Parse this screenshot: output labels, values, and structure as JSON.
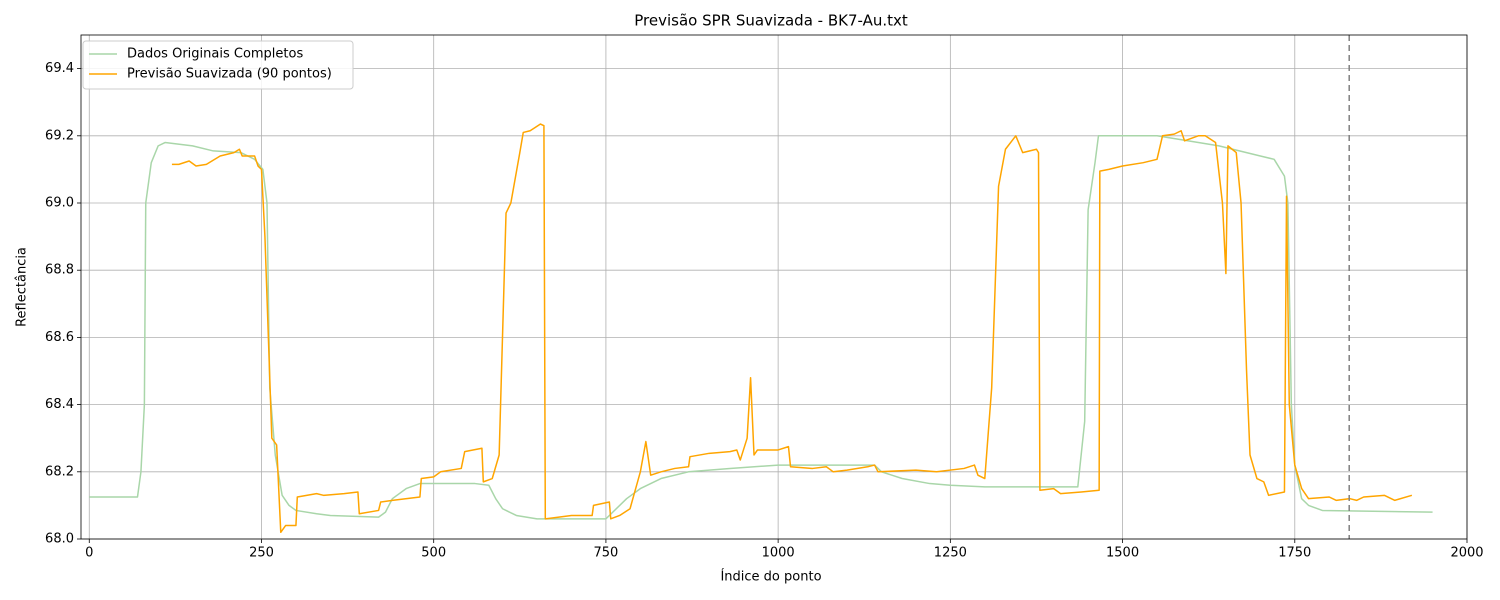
{
  "chart_data": {
    "type": "line",
    "title": "Previsão SPR Suavizada - BK7-Au.txt",
    "xlabel": "Índice do ponto",
    "ylabel": "Reflectância",
    "xlim": [
      -12,
      2000
    ],
    "ylim": [
      68.0,
      69.5
    ],
    "xticks": [
      0,
      250,
      500,
      750,
      1000,
      1250,
      1500,
      1750,
      2000
    ],
    "yticks": [
      {
        "value": 68.0,
        "label": "68.0"
      },
      68.2,
      68.4,
      68.6,
      68.8,
      {
        "value": 69.0,
        "label": "69.0"
      },
      69.2,
      69.4
    ],
    "grid": true,
    "legend": "upper left",
    "vline": {
      "x": 1829,
      "color": "#808080",
      "style": "dashed"
    },
    "series": [
      {
        "name": "Dados Originais Completos",
        "color": "#a9d6a9",
        "x": [
          0,
          70,
          75,
          80,
          82,
          90,
          100,
          110,
          150,
          180,
          220,
          240,
          252,
          258,
          262,
          270,
          280,
          290,
          300,
          330,
          350,
          420,
          430,
          440,
          460,
          480,
          560,
          580,
          590,
          600,
          620,
          650,
          750,
          760,
          780,
          800,
          830,
          870,
          930,
          1000,
          1140,
          1150,
          1180,
          1220,
          1250,
          1300,
          1435,
          1445,
          1450,
          1460,
          1465,
          1550,
          1580,
          1640,
          1680,
          1700,
          1720,
          1735,
          1740,
          1745,
          1750,
          1760,
          1770,
          1790,
          1950
        ],
        "values": [
          68.125,
          68.125,
          68.2,
          68.4,
          69.0,
          69.12,
          69.17,
          69.18,
          69.17,
          69.155,
          69.15,
          69.13,
          69.1,
          69.0,
          68.45,
          68.25,
          68.13,
          68.1,
          68.085,
          68.075,
          68.07,
          68.065,
          68.08,
          68.12,
          68.15,
          68.165,
          68.165,
          68.16,
          68.12,
          68.09,
          68.07,
          68.06,
          68.06,
          68.08,
          68.12,
          68.15,
          68.18,
          68.2,
          68.21,
          68.22,
          68.22,
          68.2,
          68.18,
          68.165,
          68.16,
          68.155,
          68.155,
          68.35,
          68.98,
          69.12,
          69.2,
          69.2,
          69.19,
          69.17,
          69.15,
          69.14,
          69.13,
          69.08,
          69.0,
          68.4,
          68.22,
          68.12,
          68.1,
          68.085,
          68.08
        ]
      },
      {
        "name": "Previsão Suavizada (90 pontos)",
        "color": "#ffa500",
        "x": [
          120,
          130,
          145,
          155,
          170,
          190,
          210,
          218,
          222,
          240,
          245,
          250,
          255,
          260,
          265,
          272,
          275,
          278,
          285,
          300,
          302,
          330,
          340,
          370,
          390,
          392,
          420,
          423,
          440,
          480,
          482,
          500,
          510,
          540,
          545,
          570,
          572,
          585,
          595,
          605,
          612,
          625,
          630,
          640,
          655,
          660,
          662,
          700,
          730,
          732,
          755,
          757,
          770,
          785,
          800,
          808,
          815,
          830,
          850,
          870,
          872,
          900,
          930,
          940,
          945,
          955,
          960,
          965,
          970,
          1000,
          1015,
          1018,
          1050,
          1070,
          1080,
          1100,
          1130,
          1140,
          1145,
          1200,
          1230,
          1270,
          1285,
          1290,
          1300,
          1310,
          1320,
          1330,
          1345,
          1355,
          1375,
          1378,
          1380,
          1400,
          1410,
          1440,
          1466,
          1467,
          1480,
          1500,
          1530,
          1550,
          1558,
          1575,
          1585,
          1590,
          1610,
          1620,
          1635,
          1645,
          1650,
          1653,
          1665,
          1672,
          1680,
          1685,
          1695,
          1705,
          1712,
          1735,
          1738,
          1742,
          1750,
          1760,
          1770,
          1800,
          1810,
          1830,
          1840,
          1850,
          1880,
          1895,
          1920
        ],
        "values": [
          69.115,
          69.115,
          69.125,
          69.11,
          69.115,
          69.14,
          69.15,
          69.16,
          69.14,
          69.14,
          69.11,
          69.1,
          68.9,
          68.6,
          68.3,
          68.28,
          68.15,
          68.02,
          68.04,
          68.04,
          68.125,
          68.135,
          68.13,
          68.135,
          68.14,
          68.075,
          68.085,
          68.11,
          68.115,
          68.125,
          68.18,
          68.185,
          68.2,
          68.21,
          68.26,
          68.27,
          68.17,
          68.18,
          68.25,
          68.97,
          69.0,
          69.15,
          69.21,
          69.215,
          69.235,
          69.23,
          68.06,
          68.07,
          68.07,
          68.1,
          68.11,
          68.06,
          68.07,
          68.09,
          68.2,
          68.29,
          68.19,
          68.2,
          68.21,
          68.215,
          68.245,
          68.255,
          68.26,
          68.265,
          68.235,
          68.3,
          68.48,
          68.25,
          68.265,
          68.265,
          68.275,
          68.215,
          68.21,
          68.215,
          68.2,
          68.205,
          68.215,
          68.22,
          68.2,
          68.205,
          68.2,
          68.21,
          68.22,
          68.19,
          68.18,
          68.45,
          69.05,
          69.16,
          69.2,
          69.15,
          69.16,
          69.15,
          68.145,
          68.15,
          68.135,
          68.14,
          68.145,
          69.095,
          69.1,
          69.11,
          69.12,
          69.13,
          69.2,
          69.205,
          69.215,
          69.185,
          69.2,
          69.2,
          69.18,
          69.0,
          68.79,
          69.17,
          69.15,
          69.0,
          68.5,
          68.25,
          68.18,
          68.17,
          68.13,
          68.14,
          69.02,
          68.4,
          68.22,
          68.15,
          68.12,
          68.125,
          68.115,
          68.12,
          68.115,
          68.125,
          68.13,
          68.115,
          68.13
        ]
      }
    ]
  }
}
